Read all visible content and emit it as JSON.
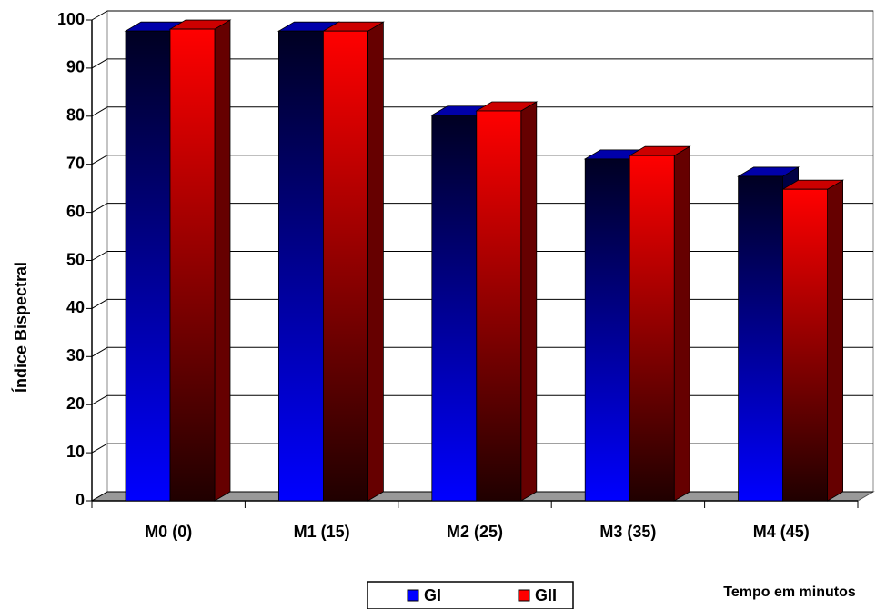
{
  "chart_data": {
    "type": "bar3d",
    "y_label": "Índice Bispectral",
    "x_label": "Tempo em minutos",
    "categories": [
      "M0 (0)",
      "M1 (15)",
      "M2 (25)",
      "M3 (35)",
      "M4 (45)"
    ],
    "series": [
      {
        "name": "GI",
        "color": "#0000ff",
        "values": [
          97.7,
          97.7,
          80.2,
          71.1,
          67.5
        ]
      },
      {
        "name": "GII",
        "color": "#ff0000",
        "values": [
          98.1,
          97.7,
          81.1,
          71.8,
          64.8
        ]
      }
    ],
    "ylim": [
      0,
      100
    ],
    "yticks": [
      0,
      10,
      20,
      30,
      40,
      50,
      60,
      70,
      80,
      90,
      100
    ],
    "grid": true
  }
}
